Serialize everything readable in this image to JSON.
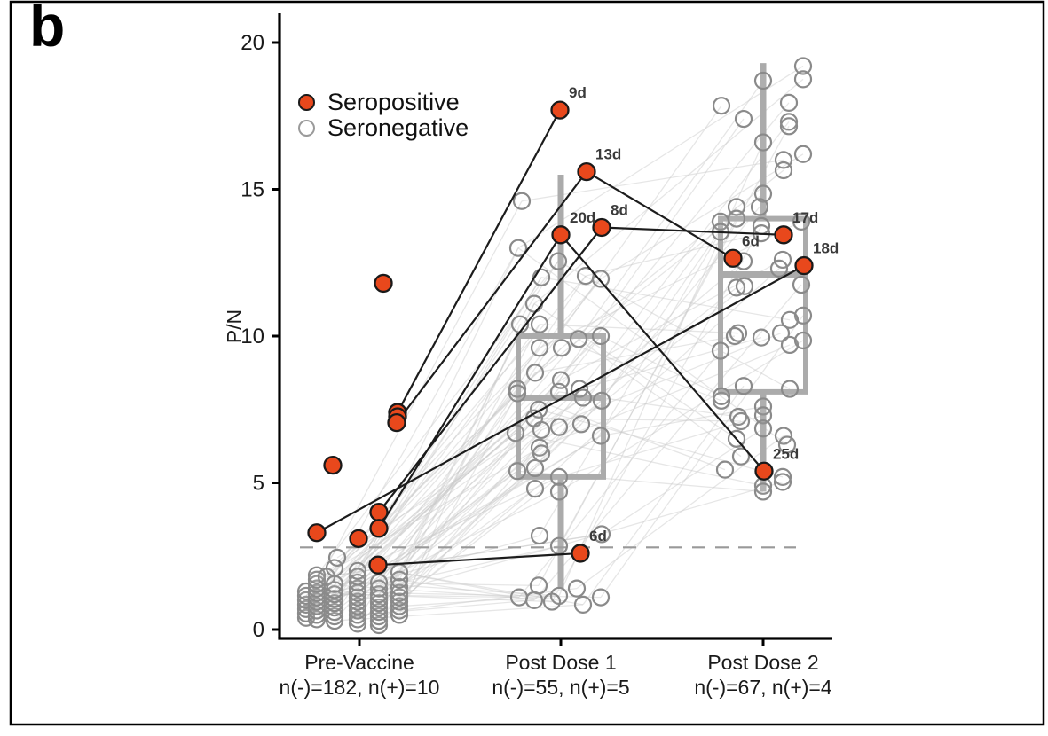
{
  "panel": {
    "label": "b"
  },
  "legend": {
    "items": [
      {
        "label": "Seropositive",
        "marker": "filled-circle-icon",
        "color": "#E8481C"
      },
      {
        "label": "Seronegative",
        "marker": "open-circle-icon",
        "color": "#9A9A9A"
      }
    ]
  },
  "chart_data": {
    "type": "scatter",
    "title": "",
    "ylabel": "P/N",
    "ylim": [
      0,
      20.5
    ],
    "y_ticks": [
      0,
      5,
      10,
      15,
      20
    ],
    "grid": false,
    "legend_position": "top-left-inside",
    "categories": [
      "Pre-Vaccine",
      "Post Dose 1",
      "Post Dose 2"
    ],
    "category_sublabels": [
      "n(-)=182, n(+)=10",
      "n(-)=55, n(+)=5",
      "n(-)=67, n(+)=4"
    ],
    "group_counts": [
      {
        "neg": 182,
        "pos": 10
      },
      {
        "neg": 55,
        "pos": 5
      },
      {
        "neg": 67,
        "pos": 4
      }
    ],
    "threshold_line": {
      "y": 2.8,
      "style": "dashed",
      "color": "#999999"
    },
    "boxplots": [
      {
        "group": 1,
        "q1": 5.2,
        "median": 7.9,
        "q3": 10.0,
        "whisker_low": 1.4,
        "whisker_high": 15.5
      },
      {
        "group": 2,
        "q1": 8.1,
        "median": 12.1,
        "q3": 14.0,
        "whisker_low": 4.7,
        "whisker_high": 19.3
      }
    ],
    "box_style": {
      "color": "#ABABAB",
      "line_width": 6,
      "half_width": 48
    },
    "seropositive_style": {
      "fill": "#E8481C",
      "stroke": "#1a1a1a",
      "radius": 9.5
    },
    "seronegative_style": {
      "fill": "rgba(255,255,255,0.05)",
      "stroke": "#8a8a8a",
      "radius": 9
    },
    "connector_style": {
      "color": "#c9c9c9",
      "opacity": 0.45,
      "width": 1.3
    },
    "trajectory_style": {
      "color": "#1c1c1c",
      "width": 2.2
    },
    "seropositive_points": [
      {
        "id": "pre-a",
        "g": 0,
        "dx": 27,
        "v": 11.8
      },
      {
        "id": "pre-b",
        "g": 0,
        "dx": 43,
        "v": 7.4
      },
      {
        "id": "pre-j",
        "g": 0,
        "dx": 43,
        "v": 7.25
      },
      {
        "id": "pre-c",
        "g": 0,
        "dx": 42,
        "v": 7.05
      },
      {
        "id": "pre-d",
        "g": 0,
        "dx": -30,
        "v": 5.6
      },
      {
        "id": "pre-e",
        "g": 0,
        "dx": 22,
        "v": 4.0
      },
      {
        "id": "pre-f",
        "g": 0,
        "dx": 22,
        "v": 3.45
      },
      {
        "id": "pre-g",
        "g": 0,
        "dx": -48,
        "v": 3.3
      },
      {
        "id": "pre-h",
        "g": 0,
        "dx": -1,
        "v": 3.1
      },
      {
        "id": "pre-i",
        "g": 0,
        "dx": 21,
        "v": 2.2
      },
      {
        "id": "pd1-9d",
        "g": 1,
        "dx": -1,
        "v": 17.7,
        "day": "9d"
      },
      {
        "id": "pd1-13d",
        "g": 1,
        "dx": 29,
        "v": 15.6,
        "day": "13d"
      },
      {
        "id": "pd1-8d",
        "g": 1,
        "dx": 46,
        "v": 13.7,
        "day": "8d"
      },
      {
        "id": "pd1-20d",
        "g": 1,
        "dx": 0,
        "v": 13.45,
        "day": "20d"
      },
      {
        "id": "pd1-6d",
        "g": 1,
        "dx": 22,
        "v": 2.6,
        "day": "6d"
      },
      {
        "id": "pd2-17d",
        "g": 2,
        "dx": 23,
        "v": 13.45,
        "day": "17d"
      },
      {
        "id": "pd2-6d",
        "g": 2,
        "dx": -34,
        "v": 12.65,
        "day": "6d"
      },
      {
        "id": "pd2-18d",
        "g": 2,
        "dx": 46,
        "v": 12.4,
        "day": "18d"
      },
      {
        "id": "pd2-25d",
        "g": 2,
        "dx": 1,
        "v": 5.4,
        "day": "25d"
      }
    ],
    "trajectories": [
      [
        "pre-b",
        "pd1-9d"
      ],
      [
        "pre-c",
        "pd1-13d"
      ],
      [
        "pd1-13d",
        "pd2-6d"
      ],
      [
        "pre-f",
        "pd1-20d"
      ],
      [
        "pd1-20d",
        "pd2-25d"
      ],
      [
        "pre-e",
        "pd1-8d"
      ],
      [
        "pd1-8d",
        "pd2-17d"
      ],
      [
        "pre-i",
        "pd1-6d"
      ],
      [
        "pre-g",
        "pd2-18d"
      ]
    ],
    "seronegative_points": {
      "group0": [
        [
          -60,
          0.4
        ],
        [
          -60,
          0.55
        ],
        [
          -60,
          0.7
        ],
        [
          -60,
          0.85
        ],
        [
          -60,
          1.0
        ],
        [
          -60,
          1.15
        ],
        [
          -60,
          1.3
        ],
        [
          -48,
          0.35
        ],
        [
          -48,
          0.5
        ],
        [
          -48,
          0.65
        ],
        [
          -48,
          0.8
        ],
        [
          -48,
          0.95
        ],
        [
          -48,
          1.1
        ],
        [
          -48,
          1.25
        ],
        [
          -48,
          1.4
        ],
        [
          -48,
          1.55
        ],
        [
          -48,
          1.7
        ],
        [
          -48,
          1.85
        ],
        [
          -37,
          1.8
        ],
        [
          -28,
          0.3
        ],
        [
          -28,
          0.45
        ],
        [
          -28,
          0.6
        ],
        [
          -28,
          0.75
        ],
        [
          -28,
          0.9
        ],
        [
          -28,
          1.05
        ],
        [
          -28,
          1.2
        ],
        [
          -28,
          1.35
        ],
        [
          -28,
          1.55
        ],
        [
          -28,
          2.1
        ],
        [
          -25,
          2.45
        ],
        [
          -2,
          0.2
        ],
        [
          -2,
          0.35
        ],
        [
          -2,
          0.5
        ],
        [
          -2,
          0.65
        ],
        [
          -2,
          0.8
        ],
        [
          -2,
          0.95
        ],
        [
          -2,
          1.1
        ],
        [
          -2,
          1.25
        ],
        [
          -2,
          1.4
        ],
        [
          -2,
          1.6
        ],
        [
          -2,
          1.8
        ],
        [
          -2,
          2.0
        ],
        [
          22,
          0.15
        ],
        [
          22,
          0.3
        ],
        [
          22,
          0.45
        ],
        [
          22,
          0.6
        ],
        [
          22,
          0.75
        ],
        [
          22,
          0.9
        ],
        [
          22,
          1.05
        ],
        [
          22,
          1.2
        ],
        [
          22,
          1.4
        ],
        [
          22,
          1.6
        ],
        [
          45,
          0.5
        ],
        [
          45,
          0.65
        ],
        [
          45,
          0.8
        ],
        [
          45,
          0.95
        ],
        [
          45,
          1.1
        ],
        [
          45,
          1.25
        ],
        [
          45,
          1.45
        ],
        [
          45,
          1.7
        ],
        [
          45,
          1.95
        ]
      ],
      "group1": [
        [
          -44,
          14.6
        ],
        [
          -48,
          13.0
        ],
        [
          -3,
          12.55
        ],
        [
          -22,
          12.0
        ],
        [
          28,
          12.05
        ],
        [
          45,
          11.95
        ],
        [
          -30,
          11.1
        ],
        [
          -46,
          10.4
        ],
        [
          -24,
          10.4
        ],
        [
          -24,
          9.6
        ],
        [
          1,
          9.6
        ],
        [
          20,
          9.9
        ],
        [
          45,
          10.0
        ],
        [
          -29,
          8.75
        ],
        [
          0,
          8.5
        ],
        [
          -49,
          8.2
        ],
        [
          -49,
          8.05
        ],
        [
          -2,
          8.1
        ],
        [
          21,
          8.2
        ],
        [
          25,
          7.9
        ],
        [
          46,
          7.8
        ],
        [
          -25,
          7.5
        ],
        [
          -30,
          7.2
        ],
        [
          -22,
          6.8
        ],
        [
          -2,
          6.9
        ],
        [
          23,
          7.0
        ],
        [
          -51,
          6.7
        ],
        [
          45,
          6.6
        ],
        [
          -24,
          6.2
        ],
        [
          -22,
          6.0
        ],
        [
          -29,
          5.5
        ],
        [
          -49,
          5.4
        ],
        [
          -2,
          5.2
        ],
        [
          -2,
          4.7
        ],
        [
          -29,
          4.8
        ],
        [
          -24,
          3.2
        ],
        [
          -2,
          2.85
        ],
        [
          46,
          3.25
        ],
        [
          -47,
          1.1
        ],
        [
          -30,
          1.0
        ],
        [
          -25,
          1.5
        ],
        [
          -2,
          1.15
        ],
        [
          18,
          1.4
        ],
        [
          25,
          0.85
        ],
        [
          45,
          1.1
        ],
        [
          -10,
          0.95
        ]
      ],
      "group2": [
        [
          45,
          19.2
        ],
        [
          45,
          18.75
        ],
        [
          0,
          18.7
        ],
        [
          -47,
          17.85
        ],
        [
          -22,
          17.4
        ],
        [
          29,
          17.95
        ],
        [
          29,
          17.3
        ],
        [
          29,
          17.15
        ],
        [
          0,
          16.6
        ],
        [
          23,
          16.0
        ],
        [
          45,
          16.2
        ],
        [
          23,
          15.65
        ],
        [
          0,
          14.85
        ],
        [
          -30,
          14.4
        ],
        [
          -4,
          14.4
        ],
        [
          -48,
          13.9
        ],
        [
          -48,
          13.55
        ],
        [
          -30,
          14.0
        ],
        [
          -2,
          13.75
        ],
        [
          -2,
          13.5
        ],
        [
          43,
          13.9
        ],
        [
          22,
          12.6
        ],
        [
          -22,
          12.55
        ],
        [
          -30,
          11.65
        ],
        [
          -21,
          11.7
        ],
        [
          18,
          12.3
        ],
        [
          43,
          11.75
        ],
        [
          45,
          10.7
        ],
        [
          30,
          10.55
        ],
        [
          -28,
          10.1
        ],
        [
          -32,
          10.0
        ],
        [
          -2,
          9.95
        ],
        [
          20,
          10.1
        ],
        [
          30,
          9.7
        ],
        [
          45,
          9.85
        ],
        [
          -48,
          9.5
        ],
        [
          -22,
          8.3
        ],
        [
          30,
          8.2
        ],
        [
          -47,
          7.8
        ],
        [
          -47,
          7.95
        ],
        [
          -28,
          7.25
        ],
        [
          -25,
          7.1
        ],
        [
          0,
          7.6
        ],
        [
          0,
          7.3
        ],
        [
          0,
          6.85
        ],
        [
          23,
          6.6
        ],
        [
          27,
          6.3
        ],
        [
          -30,
          6.5
        ],
        [
          -25,
          5.9
        ],
        [
          -43,
          5.45
        ],
        [
          22,
          5.2
        ],
        [
          0,
          4.9
        ],
        [
          0,
          4.7
        ],
        [
          22,
          5.03
        ]
      ]
    }
  }
}
